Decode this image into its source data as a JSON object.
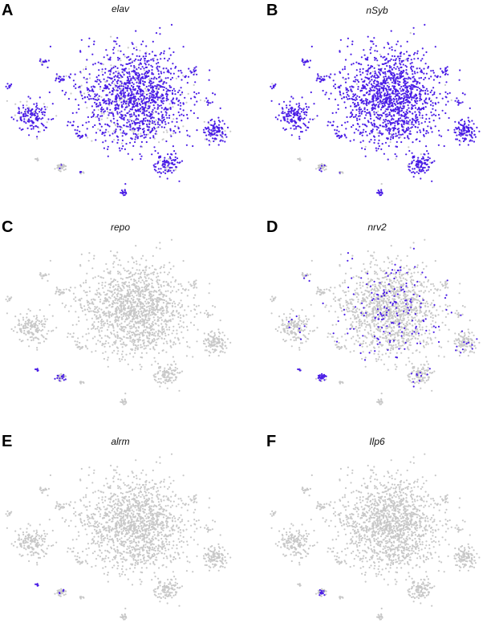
{
  "colors": {
    "background": "#ffffff",
    "low_expression": "#c8c8c8",
    "high_expression": "#4b1ee6"
  },
  "chart_data": [
    {
      "type": "scatter",
      "panel": "A",
      "title": "elav",
      "xlabel": "",
      "ylabel": "",
      "grid": false,
      "legend": "none",
      "expression_level": 0.85
    },
    {
      "type": "scatter",
      "panel": "B",
      "title": "nSyb",
      "xlabel": "",
      "ylabel": "",
      "grid": false,
      "legend": "none",
      "expression_level": 0.95
    },
    {
      "type": "scatter",
      "panel": "C",
      "title": "repo",
      "xlabel": "",
      "ylabel": "",
      "grid": false,
      "legend": "none",
      "expression_level": 0.0
    },
    {
      "type": "scatter",
      "panel": "D",
      "title": "nrv2",
      "xlabel": "",
      "ylabel": "",
      "grid": false,
      "legend": "none",
      "expression_level": 0.12
    },
    {
      "type": "scatter",
      "panel": "E",
      "title": "alrm",
      "xlabel": "",
      "ylabel": "",
      "grid": false,
      "legend": "none",
      "expression_level": 0.0
    },
    {
      "type": "scatter",
      "panel": "F",
      "title": "Ilp6",
      "xlabel": "",
      "ylabel": "",
      "grid": false,
      "legend": "none",
      "expression_level": 0.0
    }
  ]
}
